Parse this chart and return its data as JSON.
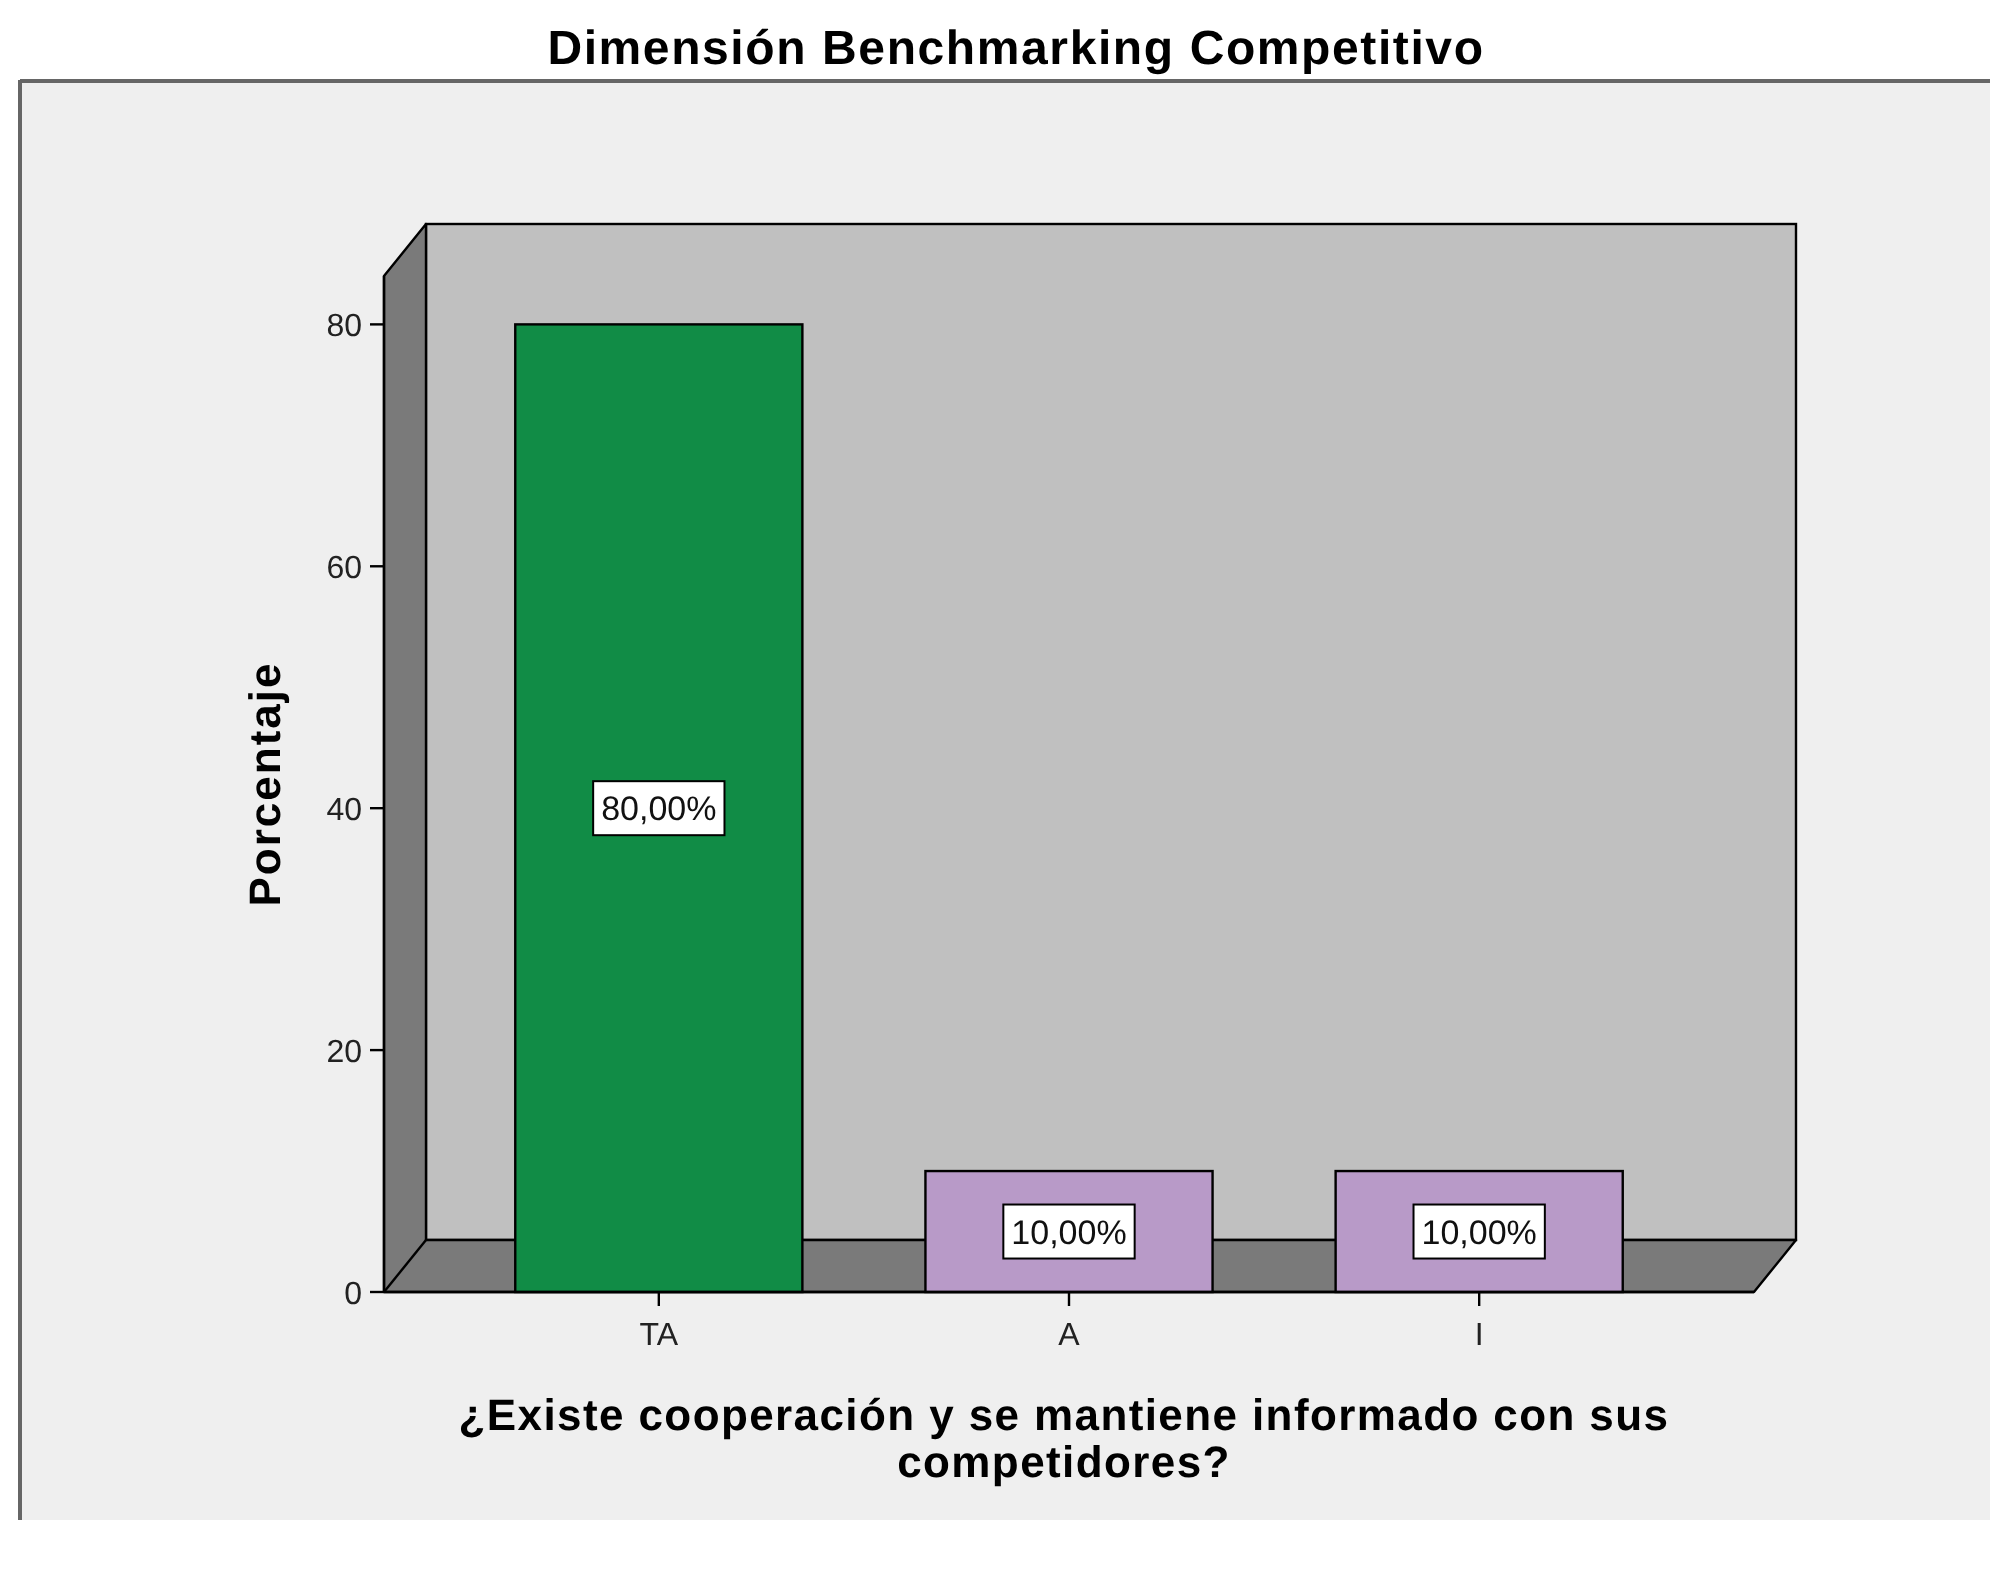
{
  "chart_data": {
    "type": "bar",
    "title": "Dimensión Benchmarking Competitivo",
    "xlabel": "¿Existe cooperación y se mantiene informado con sus competidores?",
    "ylabel": "Porcentaje",
    "categories": [
      "TA",
      "A",
      "I"
    ],
    "values": [
      80,
      10,
      10
    ],
    "colors": [
      "#118c46",
      "#b89ac8",
      "#b89ac8"
    ],
    "value_labels": [
      "80,00%",
      "10,00%",
      "10,00%"
    ],
    "ylim": [
      0,
      84
    ],
    "yticks": [
      0,
      20,
      40,
      60,
      80
    ]
  }
}
